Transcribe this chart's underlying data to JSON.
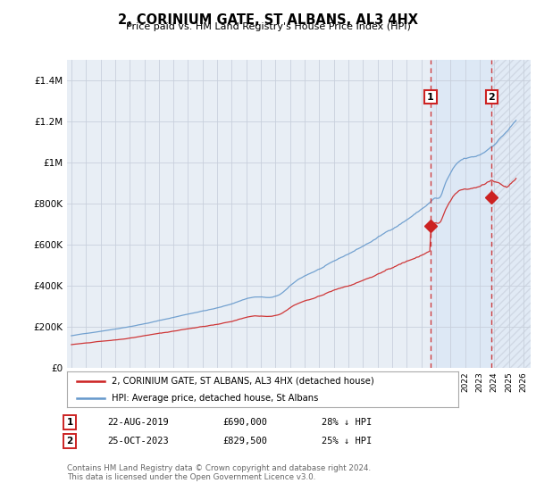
{
  "title": "2, CORINIUM GATE, ST ALBANS, AL3 4HX",
  "subtitle": "Price paid vs. HM Land Registry's House Price Index (HPI)",
  "background_color": "#ffffff",
  "plot_bg_color": "#e8eef5",
  "grid_color": "#c8d0dc",
  "hpi_color": "#6699cc",
  "price_color": "#cc2222",
  "vline_color": "#cc2222",
  "shade_color": "#dce8f5",
  "hatch_color": "#c0c8d5",
  "ylim": [
    0,
    1500000
  ],
  "yticks": [
    0,
    200000,
    400000,
    600000,
    800000,
    1000000,
    1200000,
    1400000
  ],
  "ytick_labels": [
    "£0",
    "£200K",
    "£400K",
    "£600K",
    "£800K",
    "£1M",
    "£1.2M",
    "£1.4M"
  ],
  "xlim_start": 1994.7,
  "xlim_end": 2026.5,
  "purchase1_date": 2019.64,
  "purchase1_price": 690000,
  "purchase2_date": 2023.82,
  "purchase2_price": 829500,
  "legend_line1": "2, CORINIUM GATE, ST ALBANS, AL3 4HX (detached house)",
  "legend_line2": "HPI: Average price, detached house, St Albans",
  "footer": "Contains HM Land Registry data © Crown copyright and database right 2024.\nThis data is licensed under the Open Government Licence v3.0."
}
